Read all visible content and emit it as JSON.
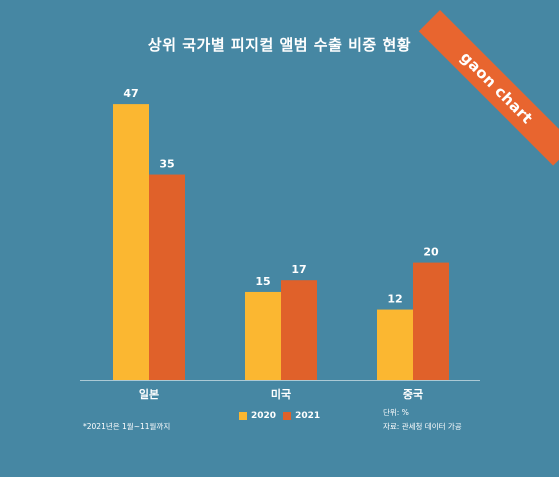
{
  "brand": "gaon chart",
  "colors": {
    "background": "#4687a3",
    "series_2020": "#fbb731",
    "series_2021": "#e0612a",
    "ribbon": "#e8652f",
    "text": "#ffffff"
  },
  "note": "*2021년은 1월~11월까지",
  "unit": "단위: %",
  "source": "자료: 관세청 데이터 가공",
  "chart_data": {
    "type": "bar",
    "title": "상위 국가별 피지컬 앨범 수출 비중 현황",
    "categories": [
      "일본",
      "미국",
      "중국"
    ],
    "series": [
      {
        "name": "2020",
        "values": [
          47,
          15,
          12
        ]
      },
      {
        "name": "2021",
        "values": [
          35,
          17,
          20
        ]
      }
    ],
    "xlabel": "",
    "ylabel": "",
    "ylim": [
      0,
      50
    ],
    "grid": false,
    "legend": "bottom-center",
    "data_labels": true
  }
}
